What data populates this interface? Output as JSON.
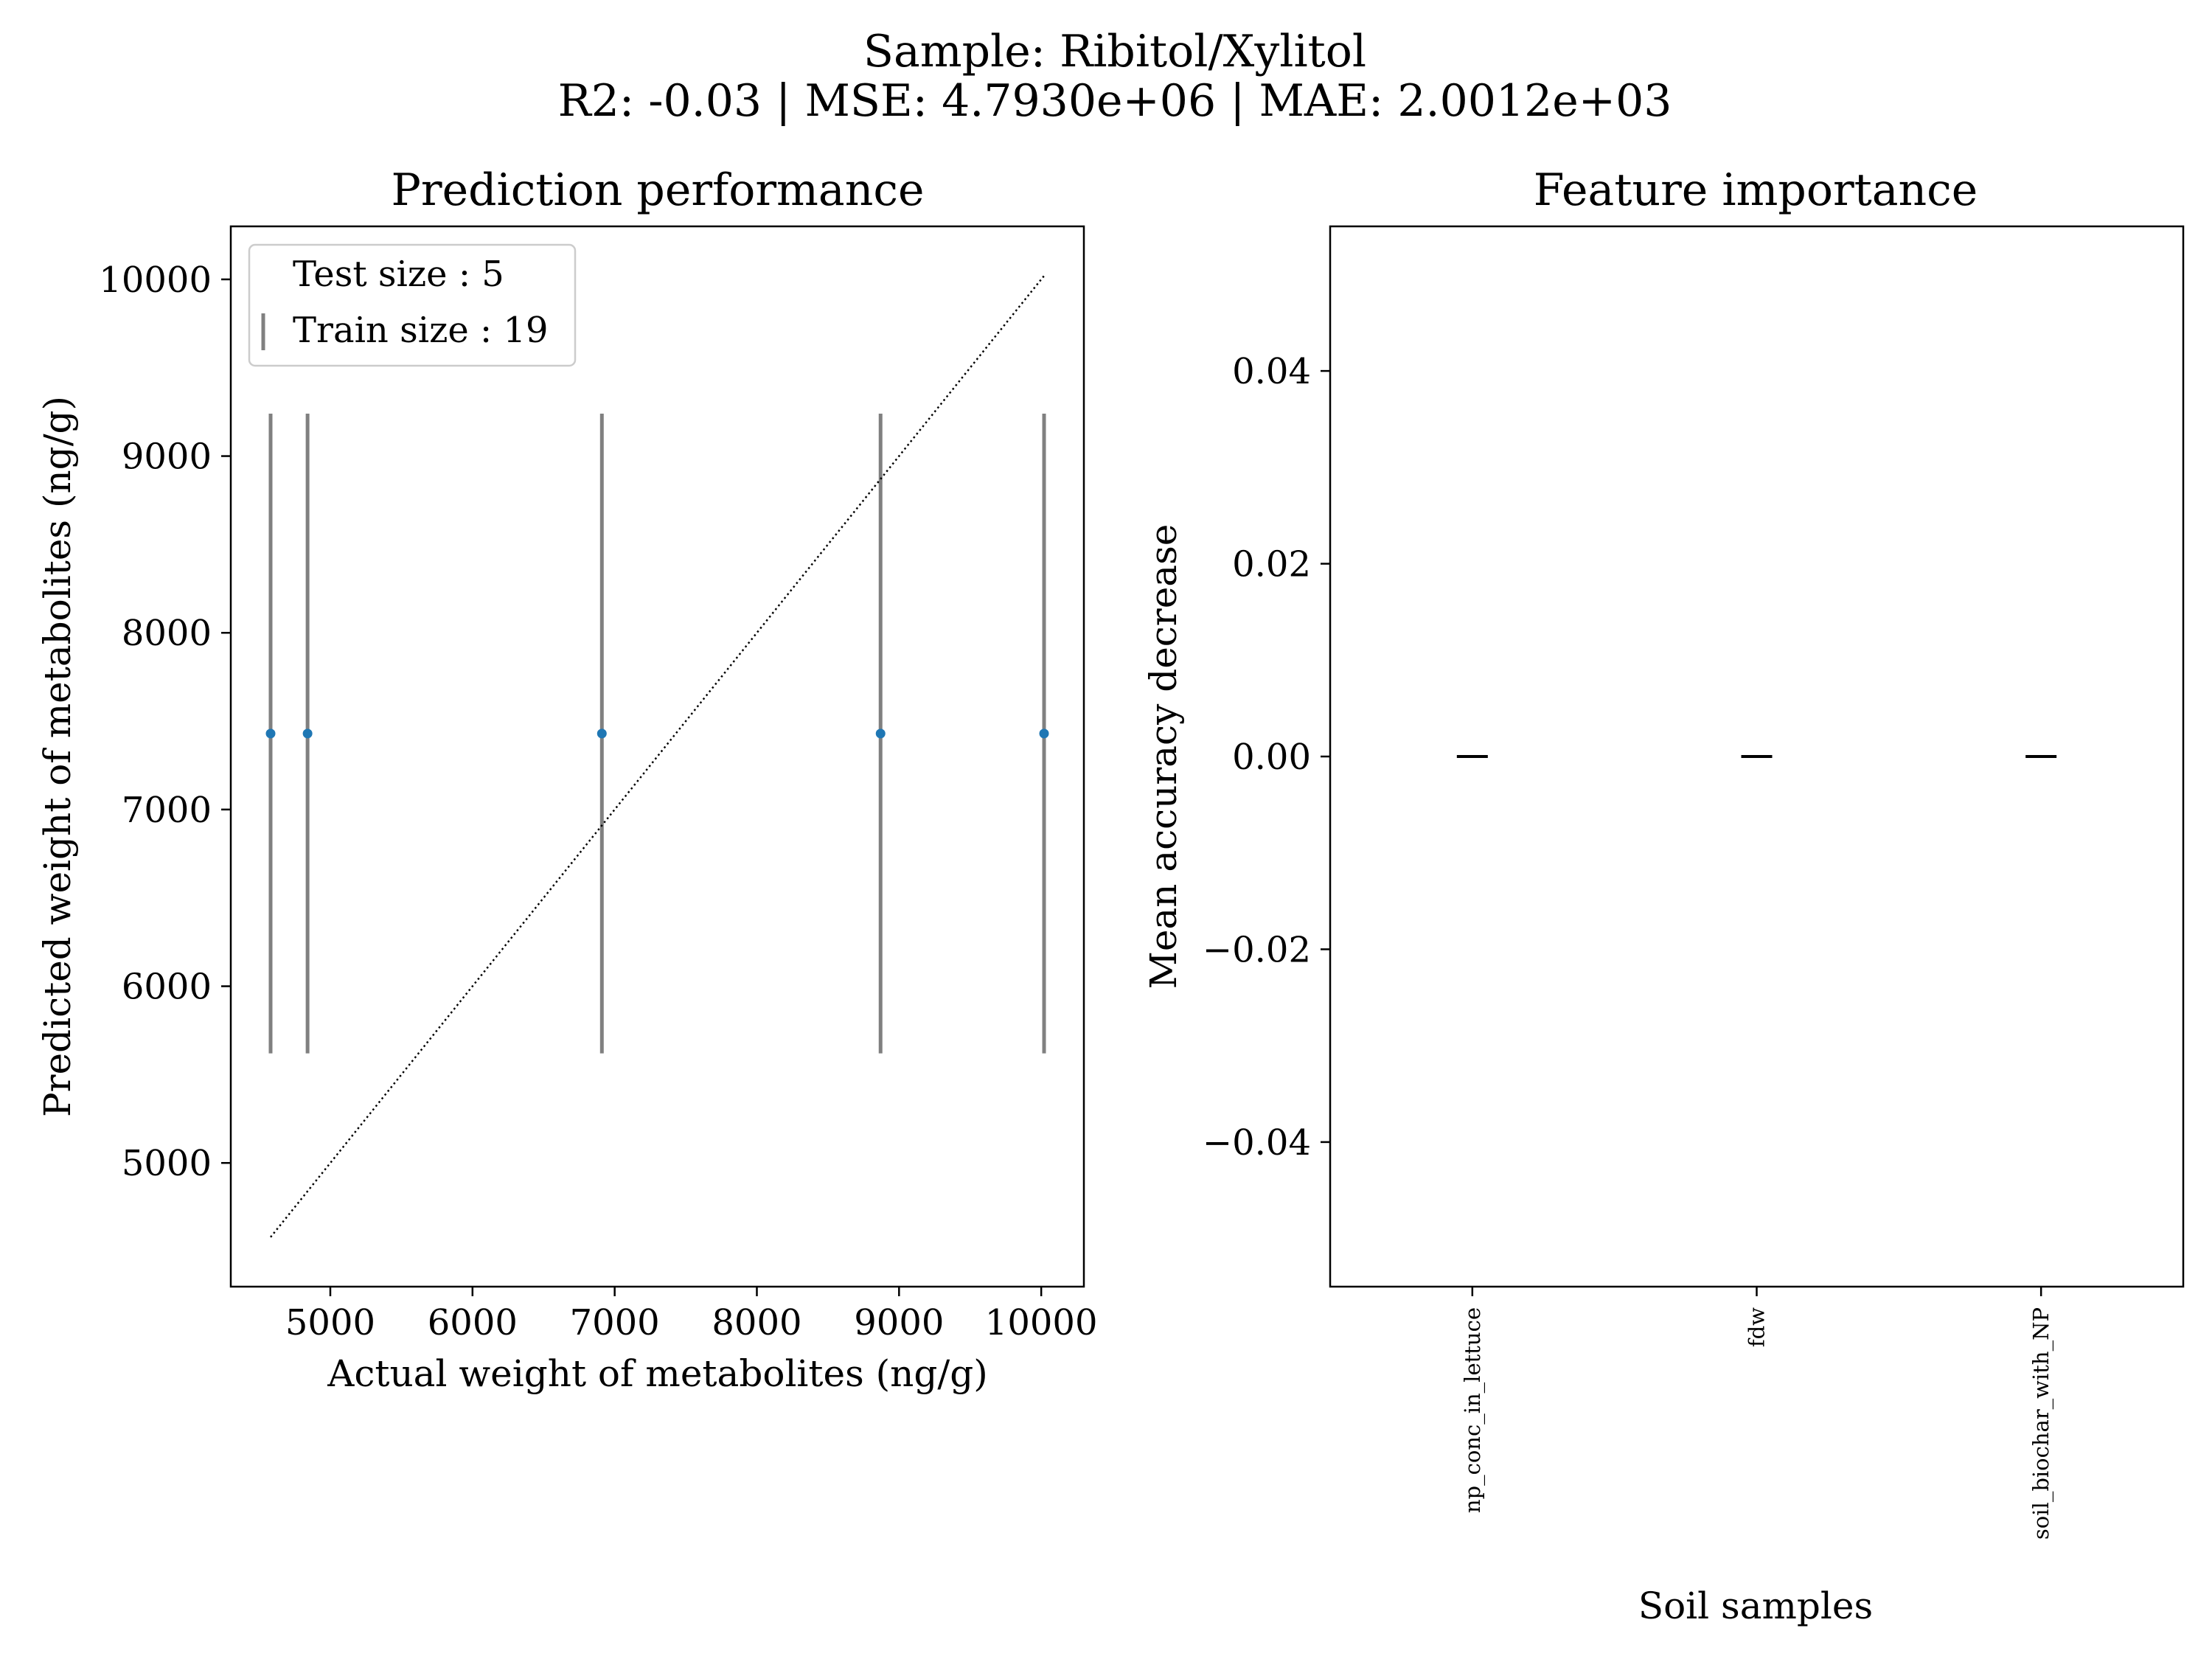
{
  "figure": {
    "title_line1": "Sample: Ribitol/Xylitol",
    "title_line2": "R2: -0.03 | MSE: 4.7930e+06 | MAE: 2.0012e+03"
  },
  "chart_data": [
    {
      "type": "scatter",
      "title": "Prediction performance",
      "xlabel": "Actual weight of metabolites (ng/g)",
      "ylabel": "Predicted weight of metabolites (ng/g)",
      "xlim": [
        4300,
        10300
      ],
      "ylim": [
        4300,
        10300
      ],
      "xticks": [
        5000,
        6000,
        7000,
        8000,
        9000,
        10000
      ],
      "yticks": [
        5000,
        6000,
        7000,
        8000,
        9000,
        10000
      ],
      "grid": false,
      "legend": {
        "placement": "upper-left",
        "entries": [
          "Test size : 5",
          "Train size : 19"
        ]
      },
      "points": [
        {
          "x": 4580,
          "y": 7430,
          "yerr_low": 5620,
          "yerr_high": 9240
        },
        {
          "x": 4840,
          "y": 7430,
          "yerr_low": 5620,
          "yerr_high": 9240
        },
        {
          "x": 6910,
          "y": 7430,
          "yerr_low": 5620,
          "yerr_high": 9240
        },
        {
          "x": 8870,
          "y": 7430,
          "yerr_low": 5620,
          "yerr_high": 9240
        },
        {
          "x": 10020,
          "y": 7430,
          "yerr_low": 5620,
          "yerr_high": 9240
        }
      ],
      "identity_line": {
        "from": 4580,
        "to": 10020
      },
      "colors": {
        "point": "#1f77b4",
        "errorbar": "#808080",
        "identity": "#000000"
      }
    },
    {
      "type": "bar",
      "title": "Feature importance",
      "xlabel": "Soil samples",
      "ylabel": "Mean accuracy decrease",
      "categories": [
        "np_conc_in_lettuce",
        "fdw",
        "soil_biochar_with_NP"
      ],
      "values": [
        0.0,
        0.0,
        0.0
      ],
      "ylim": [
        -0.055,
        0.055
      ],
      "yticks": [
        0.04,
        0.02,
        0.0,
        -0.02,
        -0.04
      ],
      "ytick_labels": [
        "0.04",
        "0.02",
        "0.00",
        "−0.02",
        "−0.04"
      ],
      "grid": false,
      "colors": {
        "marker": "#000000"
      }
    }
  ]
}
